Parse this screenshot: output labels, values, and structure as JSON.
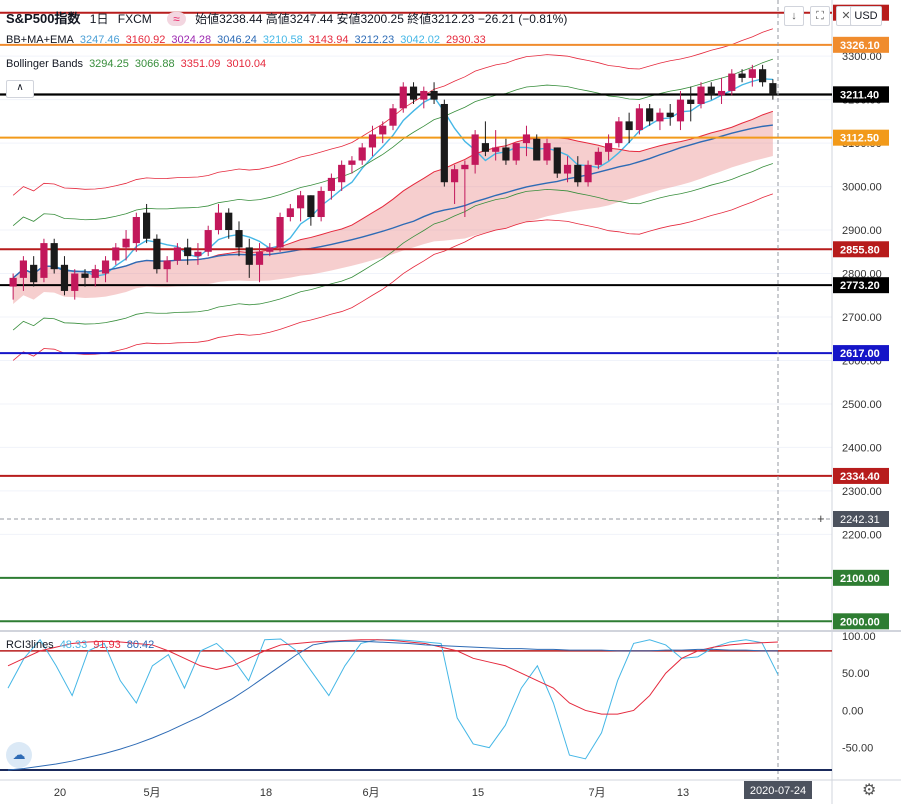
{
  "header": {
    "title": "S&P500指数",
    "interval": "1日",
    "source": "FXCM",
    "pill": "≈",
    "ohlc_text": "始値3238.44 高値3247.44 安値3200.25 終値3212.23 −26.21 (−0.81%)",
    "currency": "USD"
  },
  "legends": {
    "bbmaema": {
      "name": "BB+MA+EMA",
      "values": [
        "3247.46",
        "3160.92",
        "3024.28",
        "3046.24",
        "3210.58",
        "3143.94",
        "3212.23",
        "3042.02",
        "2930.33"
      ],
      "colors": [
        "#4a9fd6",
        "#e5293d",
        "#9c27b0",
        "#2e6bb5",
        "#45b7e6",
        "#e5293d",
        "#2e6bb5",
        "#45b7e6",
        "#e5293d"
      ]
    },
    "bollinger": {
      "name": "Bollinger Bands",
      "values": [
        "3294.25",
        "3066.88",
        "3351.09",
        "3010.04"
      ],
      "colors": [
        "#388e3c",
        "#388e3c",
        "#e5293d",
        "#e5293d"
      ]
    },
    "rci": {
      "name": "RCI3lines",
      "values": [
        "48.33",
        "91.93",
        "80.42"
      ],
      "colors": [
        "#45b7e6",
        "#e5293d",
        "#2e6bb5"
      ]
    }
  },
  "horizontal_levels": [
    {
      "value": 3326.1,
      "label": "3326.10",
      "color": "#f08c2e"
    },
    {
      "value": 3212.23,
      "label": "3212.23",
      "color": "#000000"
    },
    {
      "value": 3211.4,
      "label": "3211.40",
      "color": "#000000"
    },
    {
      "value": 3112.5,
      "label": "3112.50",
      "color": "#f29a1a"
    },
    {
      "value": 2855.8,
      "label": "2855.80",
      "color": "#b71c1c"
    },
    {
      "value": 2773.2,
      "label": "2773.20",
      "color": "#000000"
    },
    {
      "value": 2617.0,
      "label": "2617.00",
      "color": "#1515c8"
    },
    {
      "value": 2334.4,
      "label": "2334.40",
      "color": "#b71c1c"
    },
    {
      "value": 2100.0,
      "label": "2100.00",
      "color": "#2e7d32"
    },
    {
      "value": 2000.0,
      "label": "2000.00",
      "color": "#2e7d32"
    },
    {
      "value": 3400.0,
      "label": "3400.00",
      "color": "#b71c1c"
    }
  ],
  "crosshair_label": "2242.31",
  "date_label": "2020-07-24",
  "chart_data": [
    {
      "type": "candlestick",
      "title": "S&P500指数 1日 FXCM",
      "ylim": [
        1980,
        3420
      ],
      "y_ticks": [
        "3300.00",
        "3200.00",
        "3100.00",
        "3000.00",
        "2900.00",
        "2800.00",
        "2700.00",
        "2600.00",
        "2500.00",
        "2400.00",
        "2300.00",
        "2200.00"
      ],
      "x_ticks": [
        "20",
        "5月",
        "18",
        "6月",
        "15",
        "7月",
        "13"
      ],
      "ohlc": [
        [
          2770,
          2800,
          2740,
          2790
        ],
        [
          2790,
          2840,
          2760,
          2830
        ],
        [
          2820,
          2840,
          2770,
          2780
        ],
        [
          2790,
          2880,
          2780,
          2870
        ],
        [
          2870,
          2880,
          2800,
          2810
        ],
        [
          2820,
          2840,
          2750,
          2760
        ],
        [
          2760,
          2810,
          2740,
          2800
        ],
        [
          2800,
          2810,
          2770,
          2790
        ],
        [
          2790,
          2820,
          2770,
          2810
        ],
        [
          2800,
          2840,
          2780,
          2830
        ],
        [
          2830,
          2870,
          2820,
          2860
        ],
        [
          2860,
          2900,
          2830,
          2880
        ],
        [
          2870,
          2940,
          2850,
          2930
        ],
        [
          2940,
          2960,
          2870,
          2880
        ],
        [
          2880,
          2890,
          2800,
          2810
        ],
        [
          2810,
          2840,
          2780,
          2830
        ],
        [
          2830,
          2870,
          2820,
          2860
        ],
        [
          2860,
          2880,
          2820,
          2840
        ],
        [
          2840,
          2870,
          2820,
          2850
        ],
        [
          2850,
          2910,
          2840,
          2900
        ],
        [
          2900,
          2960,
          2890,
          2940
        ],
        [
          2940,
          2950,
          2880,
          2900
        ],
        [
          2900,
          2920,
          2840,
          2860
        ],
        [
          2860,
          2880,
          2790,
          2820
        ],
        [
          2820,
          2870,
          2780,
          2850
        ],
        [
          2850,
          2870,
          2840,
          2860
        ],
        [
          2860,
          2940,
          2850,
          2930
        ],
        [
          2930,
          2960,
          2920,
          2950
        ],
        [
          2950,
          2990,
          2920,
          2980
        ],
        [
          2980,
          2980,
          2910,
          2930
        ],
        [
          2930,
          3000,
          2920,
          2990
        ],
        [
          2990,
          3030,
          2970,
          3020
        ],
        [
          3010,
          3060,
          2990,
          3050
        ],
        [
          3050,
          3070,
          3030,
          3060
        ],
        [
          3060,
          3100,
          3050,
          3090
        ],
        [
          3090,
          3140,
          3070,
          3120
        ],
        [
          3120,
          3150,
          3100,
          3140
        ],
        [
          3140,
          3190,
          3130,
          3180
        ],
        [
          3180,
          3240,
          3170,
          3230
        ],
        [
          3230,
          3240,
          3190,
          3200
        ],
        [
          3200,
          3230,
          3180,
          3220
        ],
        [
          3220,
          3240,
          3190,
          3200
        ],
        [
          3190,
          3200,
          3000,
          3010
        ],
        [
          3010,
          3050,
          2960,
          3040
        ],
        [
          3040,
          3060,
          2930,
          3050
        ],
        [
          3050,
          3130,
          3030,
          3120
        ],
        [
          3100,
          3150,
          3070,
          3080
        ],
        [
          3080,
          3130,
          3060,
          3090
        ],
        [
          3090,
          3110,
          3050,
          3060
        ],
        [
          3060,
          3100,
          3050,
          3100
        ],
        [
          3100,
          3140,
          3070,
          3120
        ],
        [
          3110,
          3120,
          3060,
          3060
        ],
        [
          3060,
          3110,
          3050,
          3100
        ],
        [
          3090,
          3090,
          3020,
          3030
        ],
        [
          3030,
          3070,
          3010,
          3050
        ],
        [
          3050,
          3070,
          3000,
          3010
        ],
        [
          3010,
          3060,
          3000,
          3050
        ],
        [
          3050,
          3090,
          3040,
          3080
        ],
        [
          3080,
          3120,
          3060,
          3100
        ],
        [
          3100,
          3160,
          3090,
          3150
        ],
        [
          3150,
          3170,
          3100,
          3130
        ],
        [
          3130,
          3190,
          3120,
          3180
        ],
        [
          3180,
          3190,
          3140,
          3150
        ],
        [
          3150,
          3180,
          3130,
          3170
        ],
        [
          3170,
          3190,
          3140,
          3160
        ],
        [
          3150,
          3220,
          3130,
          3200
        ],
        [
          3200,
          3230,
          3150,
          3190
        ],
        [
          3190,
          3240,
          3180,
          3230
        ],
        [
          3230,
          3240,
          3200,
          3210
        ],
        [
          3210,
          3250,
          3190,
          3220
        ],
        [
          3220,
          3270,
          3210,
          3260
        ],
        [
          3260,
          3270,
          3240,
          3250
        ],
        [
          3250,
          3280,
          3230,
          3270
        ],
        [
          3270,
          3280,
          3230,
          3240
        ],
        [
          3238,
          3247,
          3200,
          3212
        ]
      ]
    },
    {
      "type": "line",
      "title": "RCI3lines",
      "ylim": [
        -80,
        100
      ],
      "y_ticks": [
        "100.00",
        "50.00",
        "0.00",
        "-50.00"
      ],
      "reference_line": 80,
      "series": [
        {
          "name": "48.33",
          "color": "#45b7e6",
          "values": [
            30,
            70,
            95,
            60,
            20,
            80,
            90,
            40,
            10,
            60,
            75,
            30,
            80,
            90,
            70,
            40,
            95,
            96,
            80,
            50,
            20,
            60,
            90,
            95,
            95,
            94,
            92,
            90,
            -10,
            -45,
            -50,
            -20,
            30,
            60,
            10,
            -60,
            -65,
            -30,
            40,
            90,
            95,
            88,
            70,
            72,
            85,
            92,
            95,
            91,
            48
          ]
        },
        {
          "name": "91.93",
          "color": "#e5293d",
          "values": [
            60,
            70,
            80,
            85,
            90,
            92,
            93,
            92,
            90,
            88,
            80,
            70,
            60,
            55,
            60,
            70,
            80,
            88,
            90,
            92,
            93,
            94,
            95,
            95,
            94,
            92,
            90,
            85,
            80,
            70,
            65,
            60,
            50,
            40,
            30,
            10,
            0,
            -5,
            -5,
            0,
            20,
            50,
            70,
            80,
            85,
            88,
            90,
            91,
            92
          ]
        },
        {
          "name": "80.42",
          "color": "#2e6bb5",
          "values": [
            -80,
            -78,
            -75,
            -72,
            -68,
            -63,
            -58,
            -52,
            -45,
            -37,
            -28,
            -18,
            -8,
            4,
            16,
            30,
            45,
            60,
            75,
            88,
            92,
            93,
            93,
            92,
            91,
            90,
            88,
            87,
            86,
            85,
            84,
            83,
            83,
            82,
            82,
            81,
            81,
            81,
            80,
            80,
            80,
            81,
            81,
            82,
            82,
            81,
            81,
            80,
            80
          ]
        }
      ]
    }
  ]
}
